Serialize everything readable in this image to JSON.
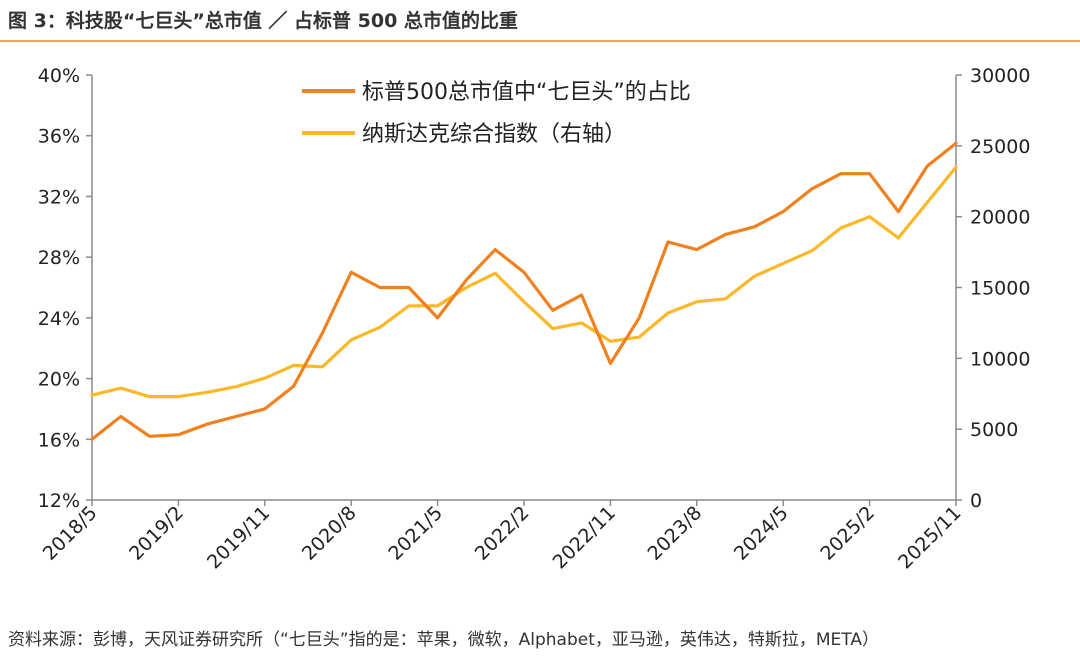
{
  "header": {
    "title": "图 3：科技股“七巨头”总市值 ／ 占标普 500 总市值的比重"
  },
  "footer": {
    "source": "资料来源：彭博，天风证券研究所（“七巨头”指的是：苹果，微软，Alphabet，亚马逊，英伟达，特斯拉，META）"
  },
  "colors": {
    "series_share": "#f0811e",
    "series_nasdaq": "#fbb829",
    "axis": "#8c8c8c",
    "title_rule": "#f0a35a"
  },
  "chart_data": {
    "type": "line",
    "title": "",
    "x_ticks": [
      "2018/5",
      "2019/2",
      "2019/11",
      "2020/8",
      "2021/5",
      "2022/2",
      "2022/11",
      "2023/8",
      "2024/5",
      "2025/2",
      "2025/11"
    ],
    "y_left": {
      "min": 12,
      "max": 40,
      "ticks": [
        "12%",
        "16%",
        "20%",
        "24%",
        "28%",
        "32%",
        "36%",
        "40%"
      ]
    },
    "y_right": {
      "min": 0,
      "max": 30000,
      "ticks": [
        "0",
        "5000",
        "10000",
        "15000",
        "20000",
        "25000",
        "30000"
      ]
    },
    "grid": false,
    "legend_position": "top-center",
    "series": [
      {
        "name": "标普500总市值中“七巨头”的占比",
        "axis": "left",
        "x": [
          "2018/5",
          "2018/8",
          "2018/11",
          "2019/2",
          "2019/5",
          "2019/8",
          "2019/11",
          "2020/2",
          "2020/5",
          "2020/8",
          "2020/11",
          "2021/2",
          "2021/5",
          "2021/8",
          "2021/11",
          "2022/2",
          "2022/5",
          "2022/8",
          "2022/11",
          "2023/2",
          "2023/5",
          "2023/8",
          "2023/11",
          "2024/2",
          "2024/5",
          "2024/8",
          "2024/11",
          "2025/2",
          "2025/5",
          "2025/8",
          "2025/11"
        ],
        "values": [
          16.0,
          17.5,
          16.2,
          16.3,
          17.0,
          17.5,
          18.0,
          19.5,
          23.0,
          27.0,
          26.0,
          26.0,
          24.0,
          26.5,
          28.5,
          27.0,
          24.5,
          25.5,
          21.0,
          24.0,
          29.0,
          28.5,
          29.5,
          30.0,
          31.0,
          32.5,
          33.5,
          33.5,
          31.0,
          34.0,
          35.5
        ]
      },
      {
        "name": "纳斯达克综合指数（右轴）",
        "axis": "right",
        "x": [
          "2018/5",
          "2018/8",
          "2018/11",
          "2019/2",
          "2019/5",
          "2019/8",
          "2019/11",
          "2020/2",
          "2020/5",
          "2020/8",
          "2020/11",
          "2021/2",
          "2021/5",
          "2021/8",
          "2021/11",
          "2022/2",
          "2022/5",
          "2022/8",
          "2022/11",
          "2023/2",
          "2023/5",
          "2023/8",
          "2023/11",
          "2024/2",
          "2024/5",
          "2024/8",
          "2024/11",
          "2025/2",
          "2025/5",
          "2025/8",
          "2025/11"
        ],
        "values": [
          7400,
          7900,
          7300,
          7300,
          7600,
          8000,
          8600,
          9500,
          9400,
          11300,
          12200,
          13700,
          13700,
          15000,
          16000,
          14000,
          12100,
          12500,
          11200,
          11500,
          13200,
          14000,
          14200,
          15800,
          16700,
          17600,
          19200,
          20000,
          18500,
          21000,
          23500
        ]
      }
    ]
  }
}
